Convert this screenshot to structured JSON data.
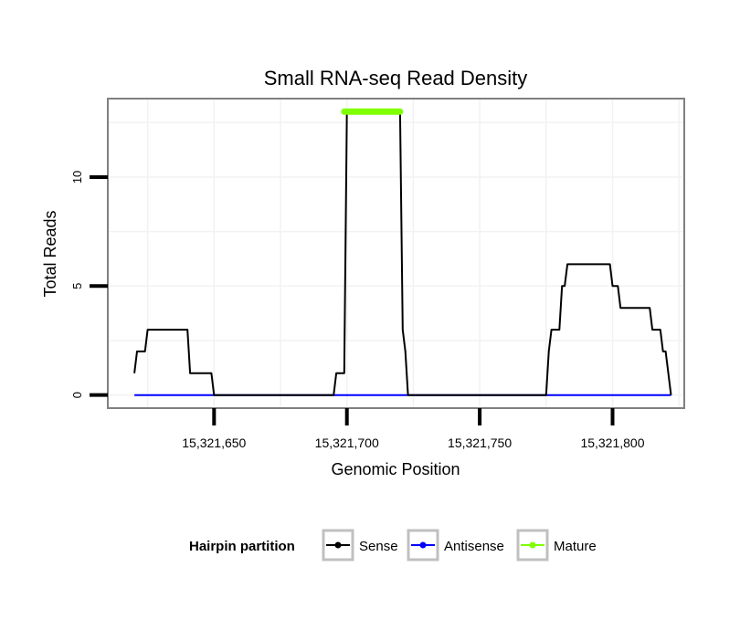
{
  "chart_data": {
    "type": "line",
    "title": "Small RNA-seq Read Density",
    "xlabel": "Genomic Position",
    "ylabel": "Total Reads",
    "xlim": [
      15321610,
      15321827
    ],
    "ylim": [
      -0.6,
      13.6
    ],
    "x_ticks": [
      15321650,
      15321700,
      15321750,
      15321800
    ],
    "x_tick_labels": [
      "15,321,650",
      "15,321,700",
      "15,321,750",
      "15,321,800"
    ],
    "y_ticks": [
      0,
      5,
      10
    ],
    "y_tick_labels": [
      "0",
      "5",
      "10"
    ],
    "grid": true,
    "legend": {
      "title": "Hairpin partition",
      "position": "bottom",
      "entries": [
        "Sense",
        "Antisense",
        "Mature"
      ]
    },
    "series": [
      {
        "name": "Sense",
        "color": "#000000",
        "points": [
          [
            15321620,
            1
          ],
          [
            15321621,
            2
          ],
          [
            15321624,
            2
          ],
          [
            15321625,
            3
          ],
          [
            15321640,
            3
          ],
          [
            15321641,
            1
          ],
          [
            15321649,
            1
          ],
          [
            15321650,
            0
          ],
          [
            15321695,
            0
          ],
          [
            15321696,
            1
          ],
          [
            15321699,
            1
          ],
          [
            15321700,
            13
          ],
          [
            15321720,
            13
          ],
          [
            15321721,
            3
          ],
          [
            15321722,
            2
          ],
          [
            15321723,
            0
          ],
          [
            15321775,
            0
          ],
          [
            15321776,
            2
          ],
          [
            15321777,
            3
          ],
          [
            15321780,
            3
          ],
          [
            15321781,
            5
          ],
          [
            15321782,
            5
          ],
          [
            15321783,
            6
          ],
          [
            15321799,
            6
          ],
          [
            15321800,
            5
          ],
          [
            15321802,
            5
          ],
          [
            15321803,
            4
          ],
          [
            15321814,
            4
          ],
          [
            15321815,
            3
          ],
          [
            15321818,
            3
          ],
          [
            15321819,
            2
          ],
          [
            15321820,
            2
          ],
          [
            15321822,
            0
          ]
        ]
      },
      {
        "name": "Antisense",
        "color": "#0000ff",
        "points": [
          [
            15321620,
            0
          ],
          [
            15321822,
            0
          ]
        ]
      },
      {
        "name": "Mature",
        "color": "#7fff00",
        "points": [
          [
            15321699,
            13
          ],
          [
            15321720,
            13
          ]
        ]
      }
    ]
  }
}
